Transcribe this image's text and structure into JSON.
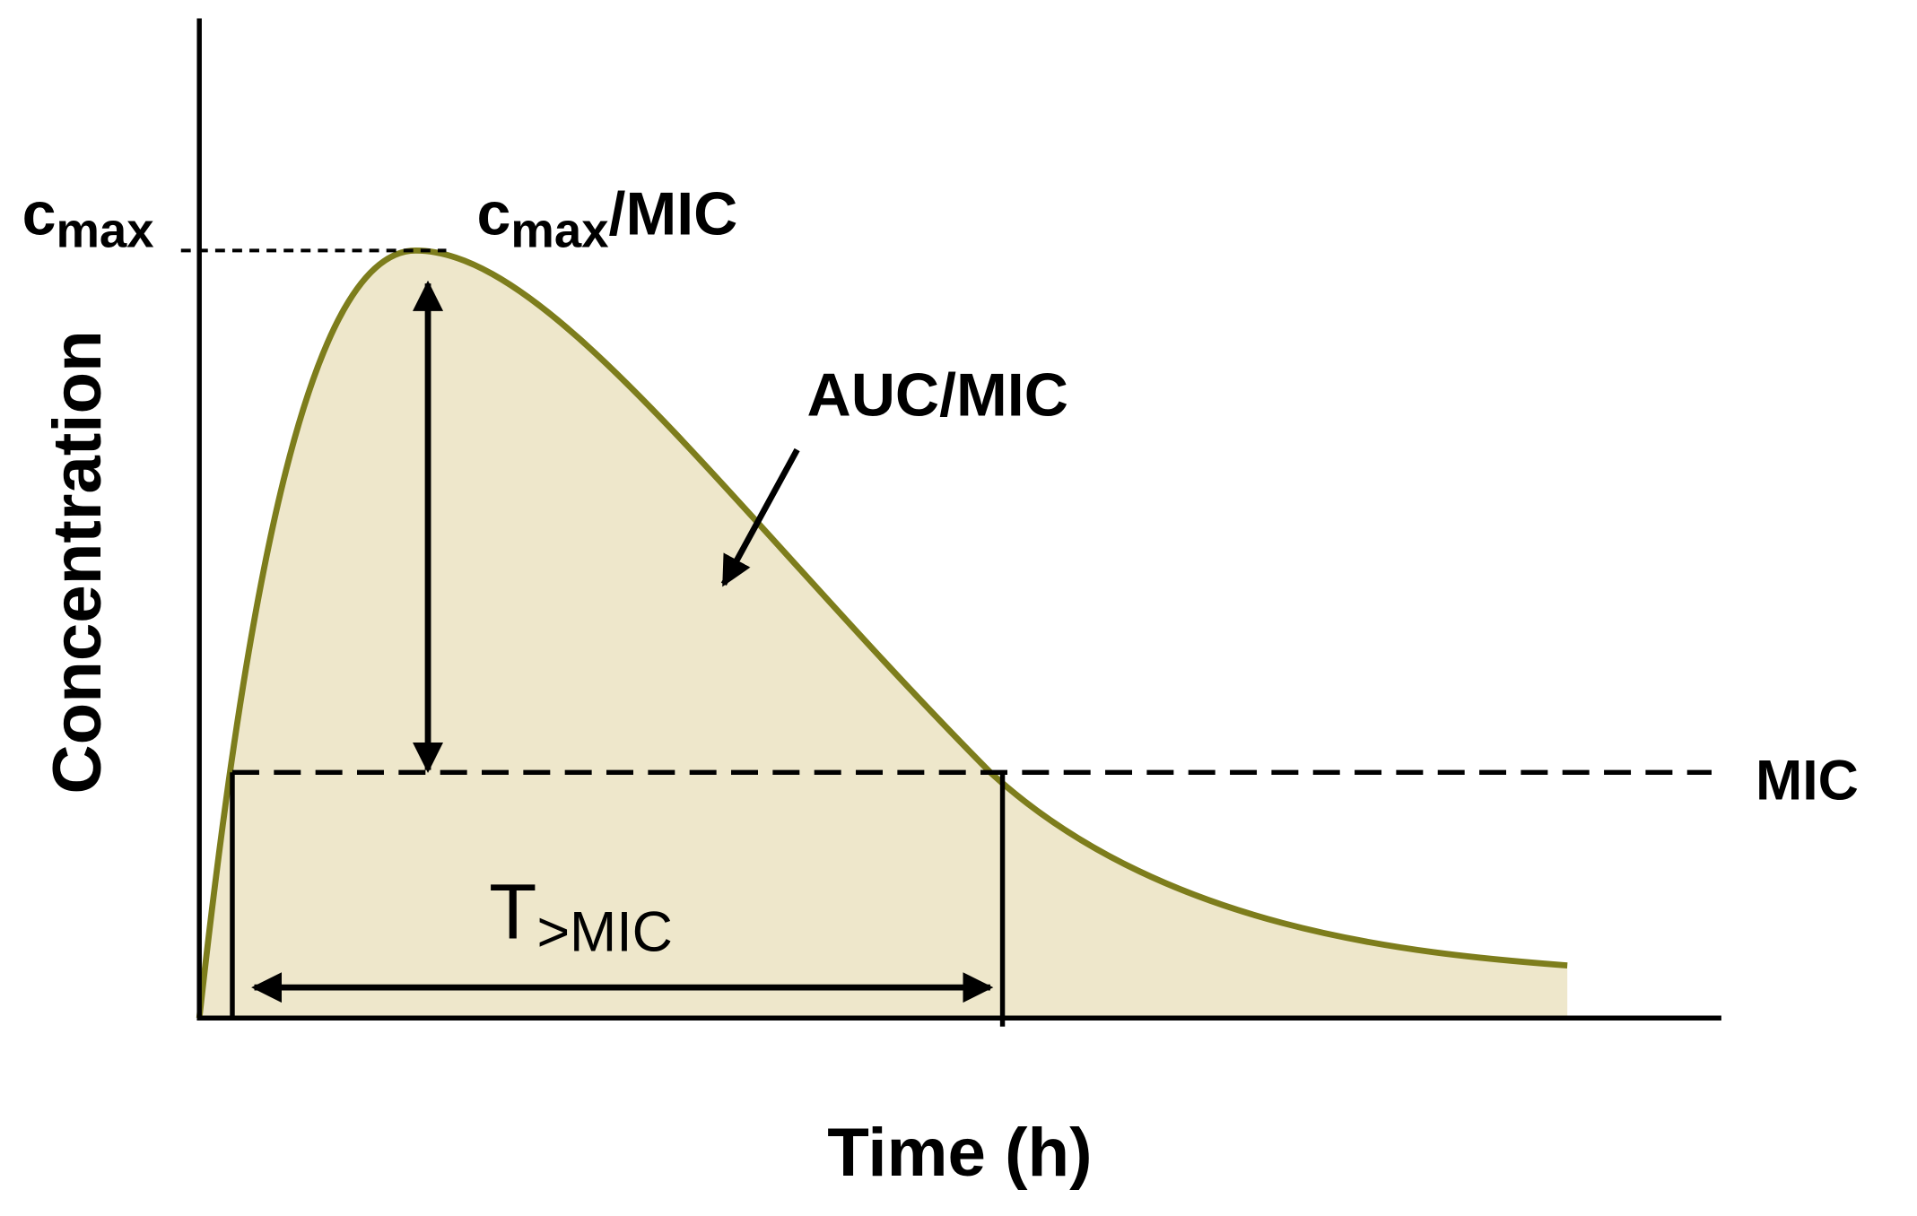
{
  "y_axis_label": "Concentration",
  "x_axis_label": "Time (h)",
  "cmax_label": {
    "base": "c",
    "sub": "max"
  },
  "cmax_mic_label": {
    "base": "c",
    "sub": "max",
    "rest": "/MIC"
  },
  "auc_mic_label": "AUC/MIC",
  "mic_label": "MIC",
  "t_mic_label": {
    "base": "T",
    "sub": ">MIC"
  }
}
